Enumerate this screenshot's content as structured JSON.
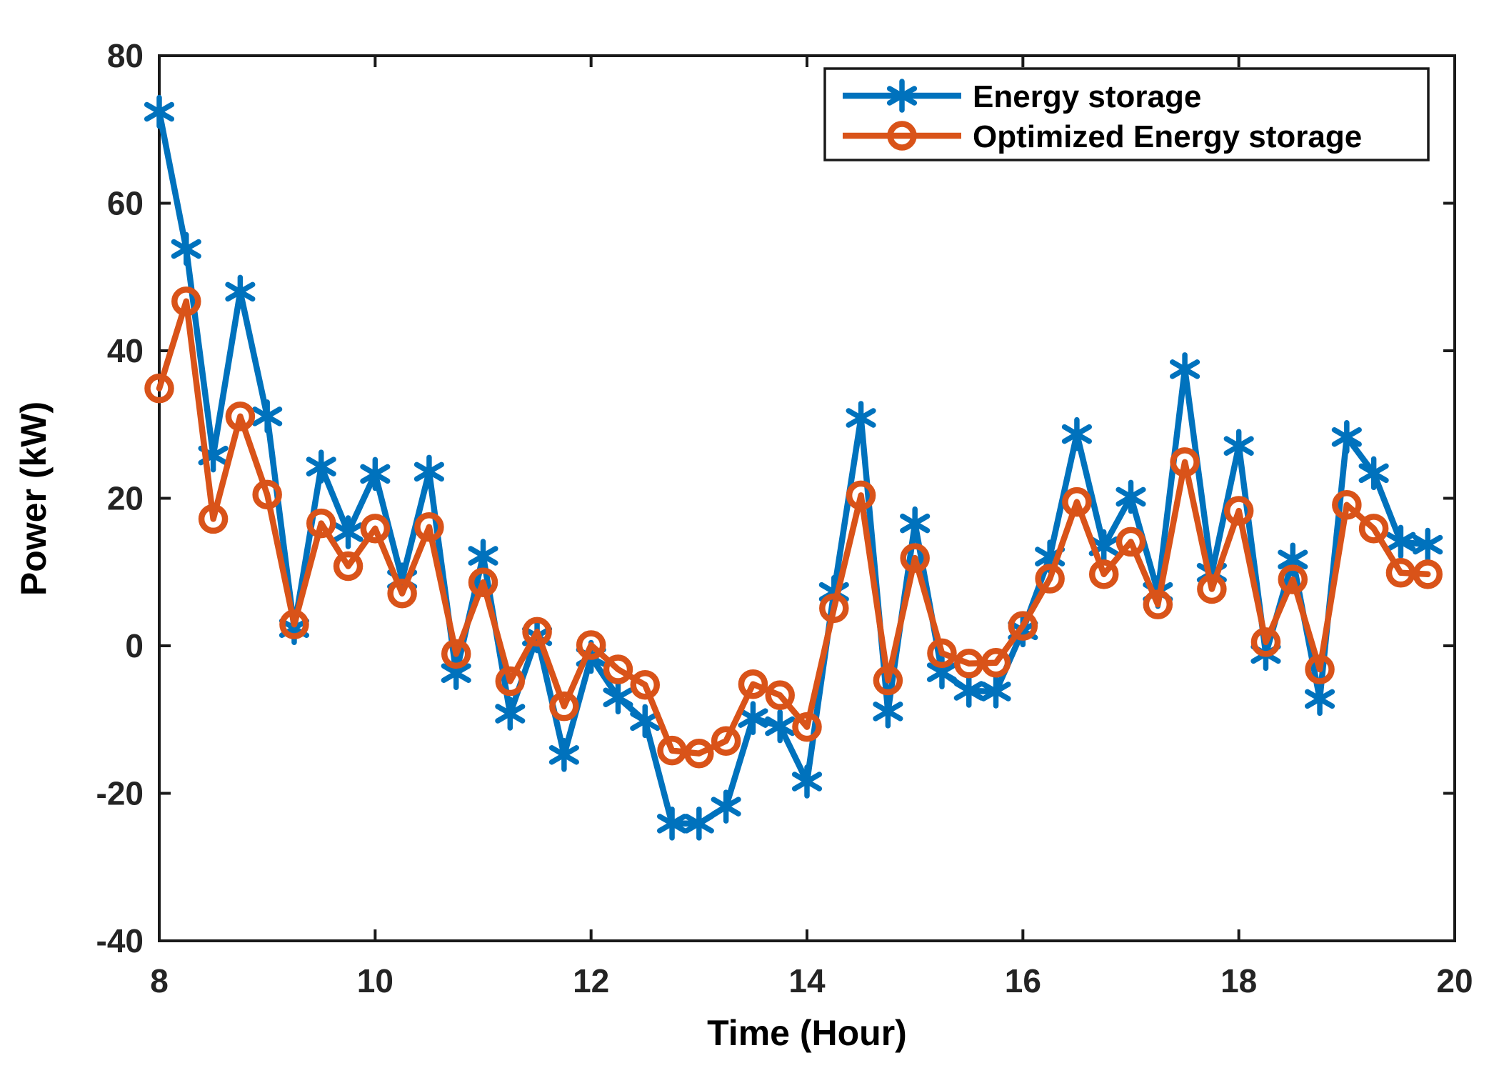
{
  "figure": {
    "background": "#ffffff",
    "axis_color": "#1a1a1a",
    "tick_label_color": "#242424"
  },
  "chart_data": {
    "type": "line",
    "title": "",
    "xlabel": "Time (Hour)",
    "ylabel": "Power (kW)",
    "xlim": [
      8,
      20
    ],
    "ylim": [
      -40,
      80
    ],
    "x_ticks": [
      8,
      10,
      12,
      14,
      16,
      18,
      20
    ],
    "y_ticks": [
      -40,
      -20,
      0,
      20,
      40,
      60,
      80
    ],
    "grid": false,
    "legend_position": "top-right",
    "x": [
      8,
      8.25,
      8.5,
      8.75,
      9,
      9.25,
      9.5,
      9.75,
      10,
      10.25,
      10.5,
      10.75,
      11,
      11.25,
      11.5,
      11.75,
      12,
      12.25,
      12.5,
      12.75,
      13,
      13.25,
      13.5,
      13.75,
      14,
      14.25,
      14.5,
      14.75,
      15,
      15.25,
      15.5,
      15.75,
      16,
      16.25,
      16.5,
      16.75,
      17,
      17.25,
      17.5,
      17.75,
      18,
      18.25,
      18.5,
      18.75,
      19,
      19.25,
      19.5,
      19.75
    ],
    "series": [
      {
        "name": "Energy storage",
        "color": "#0072BD",
        "marker": "asterisk",
        "values": [
          72.4,
          53.8,
          25.8,
          48,
          31.1,
          2.4,
          24.3,
          15.4,
          23.3,
          9,
          23.6,
          -3.7,
          12.2,
          -9.2,
          1.3,
          -14.8,
          -1.5,
          -7,
          -10.2,
          -24.1,
          -24.1,
          -21.8,
          -9.8,
          -10.9,
          -18.4,
          7.3,
          30.9,
          -8.9,
          16.6,
          -3.6,
          -6.1,
          -6.2,
          2.1,
          12.1,
          28.7,
          13.5,
          20.2,
          7.3,
          37.5,
          9.9,
          27.1,
          -1.1,
          11.7,
          -7.2,
          28.3,
          23.4,
          14.1,
          13.7
        ]
      },
      {
        "name": "Optimized Energy storage",
        "color": "#D95319",
        "marker": "circle",
        "values": [
          34.9,
          46.7,
          17.2,
          31.1,
          20.5,
          2.9,
          16.6,
          10.8,
          15.9,
          7.1,
          16.1,
          -1.1,
          8.6,
          -4.8,
          1.9,
          -8.2,
          0.1,
          -3.2,
          -5.3,
          -14.2,
          -14.6,
          -12.9,
          -5.2,
          -6.7,
          -11,
          5.1,
          20.4,
          -4.7,
          11.9,
          -1,
          -2.4,
          -2.3,
          2.7,
          9.1,
          19.5,
          9.7,
          14.1,
          5.6,
          24.9,
          7.7,
          18.3,
          0.5,
          9,
          -3.2,
          19.1,
          15.9,
          9.9,
          9.7
        ]
      }
    ]
  }
}
